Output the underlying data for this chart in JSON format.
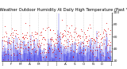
{
  "title": "Milwaukee Weather Outdoor Humidity At Daily High Temperature (Past Year)",
  "title_fontsize": 3.8,
  "background_color": "#ffffff",
  "plot_bg_color": "#ffffff",
  "grid_color": "#bbbbbb",
  "ylim": [
    20,
    100
  ],
  "yticks": [
    20,
    40,
    60,
    80,
    100
  ],
  "ylabel_fontsize": 3.2,
  "xlabel_fontsize": 3.0,
  "n_points": 365,
  "bar_color": "#0000dd",
  "dot_color": "#dd0000",
  "spike_index": 190,
  "spike_value": 98,
  "n_grid_lines": 13
}
